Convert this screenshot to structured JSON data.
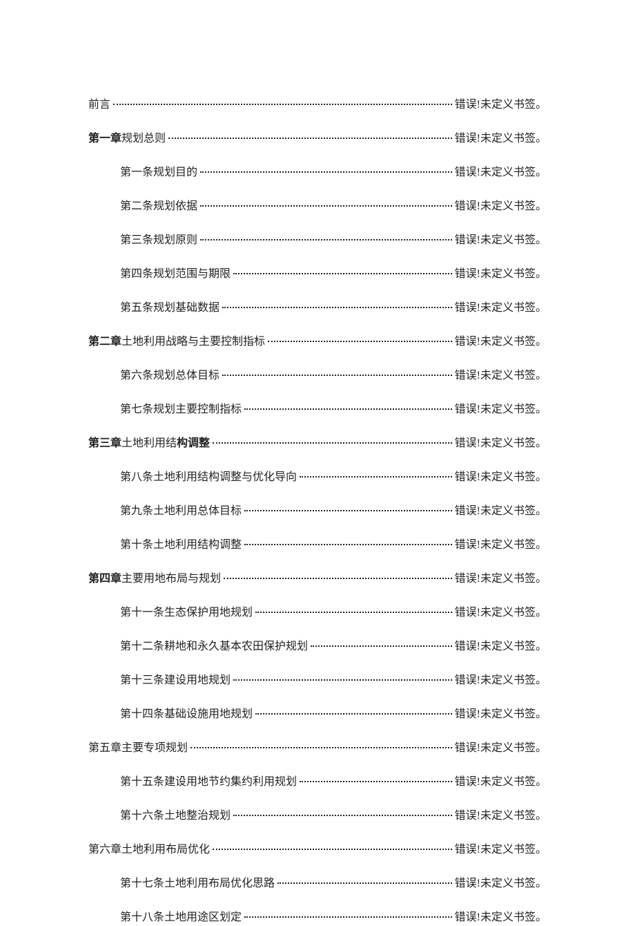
{
  "error_text": "错误!未定义书签。",
  "toc": [
    {
      "label": "前言",
      "bold": false,
      "indent": 0
    },
    {
      "label_prefix": "第一章",
      "label_rest": "规划总则",
      "bold_prefix": true,
      "indent": 0
    },
    {
      "label": "第一条规划目的",
      "bold": false,
      "indent": 1,
      "trailing_space": true
    },
    {
      "label": "第二条规划依据",
      "bold": false,
      "indent": 1,
      "trailing_space": true
    },
    {
      "label": "第三条规划原则",
      "bold": false,
      "indent": 1,
      "trailing_space": true
    },
    {
      "label": "第四条规划范围与期限",
      "bold": false,
      "indent": 1,
      "trailing_space": true
    },
    {
      "label": "第五条规划基础数据",
      "bold": false,
      "indent": 1,
      "trailing_space": true
    },
    {
      "label_prefix": "第二章",
      "label_rest": "土地利用战略与主要控制指标",
      "bold_prefix": true,
      "indent": 0
    },
    {
      "label": "第六条规划总体目标",
      "bold": false,
      "indent": 1,
      "trailing_space": true
    },
    {
      "label": "第七条规划主要控制指标",
      "bold": false,
      "indent": 1,
      "trailing_space": true
    },
    {
      "label_prefix": "第三章",
      "label_rest_a": "土地利用结",
      "label_rest_b": "构调整",
      "bold_prefix": true,
      "bold_rest_b": true,
      "indent": 0
    },
    {
      "label": "第八条土地利用结构调整与优化导向",
      "bold": false,
      "indent": 1,
      "trailing_space": true
    },
    {
      "label": "第九条土地利用总体目标",
      "bold": false,
      "indent": 1,
      "trailing_space": true
    },
    {
      "label": "第十条土地利用结构调整",
      "bold": false,
      "indent": 1,
      "trailing_space": true
    },
    {
      "label_prefix": "第四章",
      "label_rest": "主要用地布局与规划",
      "bold_prefix": true,
      "indent": 0
    },
    {
      "label": "第十一条生态保护用地规划",
      "bold": false,
      "indent": 1,
      "trailing_space": true
    },
    {
      "label": "第十二条耕地和永久基本农田保护规划",
      "bold": false,
      "indent": 1,
      "trailing_space": true
    },
    {
      "label": "第十三条建设用地规划",
      "bold": false,
      "indent": 1,
      "trailing_space": true
    },
    {
      "label": "第十四条基础设施用地规划",
      "bold": false,
      "indent": 1,
      "trailing_space": true
    },
    {
      "label": "第五章主要专项规划",
      "bold": false,
      "indent": 0
    },
    {
      "label": "第十五条建设用地节约集约利用规划",
      "bold": false,
      "indent": 1,
      "trailing_space": true
    },
    {
      "label": "第十六条土地整治规划",
      "bold": false,
      "indent": 1,
      "trailing_space": true
    },
    {
      "label": "第六章土地利用布局优化",
      "bold": false,
      "indent": 0
    },
    {
      "label": "第十七条土地利用布局优化思路",
      "bold": false,
      "indent": 1,
      "trailing_space": true
    },
    {
      "label": "第十八条土地用途区划定",
      "bold": false,
      "indent": 1,
      "trailing_space": true
    }
  ]
}
